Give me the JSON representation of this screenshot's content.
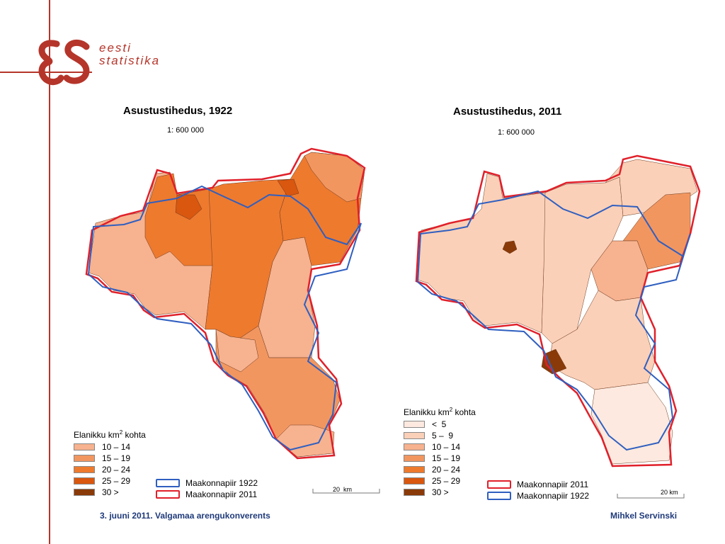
{
  "logo": {
    "mark": "ES",
    "line1": "eesti",
    "line2": "statistika"
  },
  "colors": {
    "brand": "#b5352a",
    "border_1922": "#2f5fc0",
    "border_2011": "#e0202a"
  },
  "map_left": {
    "title": "Asustustihedus, 1922",
    "scale": "1: 600 000"
  },
  "map_right": {
    "title": "Asustustihedus, 2011",
    "scale": "1: 600 000"
  },
  "legend_left": {
    "title": "Elanikku km",
    "sup": "2",
    "title_suffix": " kohta",
    "classes": [
      {
        "label": "10 – 14",
        "color": "#f7b28f"
      },
      {
        "label": "15 – 19",
        "color": "#f29660"
      },
      {
        "label": "20 – 24",
        "color": "#ee7a2e"
      },
      {
        "label": "25 – 29",
        "color": "#d9570f"
      },
      {
        "label": "30 >",
        "color": "#8a3a08"
      }
    ],
    "borders": [
      {
        "label": "Maakonnapiir 1922",
        "color": "#2f5fc0"
      },
      {
        "label": "Maakonnapiir 2011",
        "color": "#e0202a"
      }
    ],
    "scalebar": "20  km"
  },
  "legend_right": {
    "title": "Elanikku km",
    "sup": "2",
    "title_suffix": " kohta",
    "classes": [
      {
        "label": "<  5",
        "color": "#fde9df"
      },
      {
        "label": "5 –  9",
        "color": "#fbd0b8"
      },
      {
        "label": "10 – 14",
        "color": "#f7b28f"
      },
      {
        "label": "15 – 19",
        "color": "#f29660"
      },
      {
        "label": "20 – 24",
        "color": "#ee7a2e"
      },
      {
        "label": "25 – 29",
        "color": "#d9570f"
      },
      {
        "label": "30 >",
        "color": "#8a3a08"
      }
    ],
    "borders": [
      {
        "label": "Maakonnapiir 2011",
        "color": "#e0202a"
      },
      {
        "label": "Maakonnapiir 1922",
        "color": "#2f5fc0"
      }
    ],
    "scalebar": "20 km"
  },
  "footer": {
    "left": "3. juuni 2011. Valgamaa arengukonverents",
    "right": "Mihkel Servinski"
  }
}
